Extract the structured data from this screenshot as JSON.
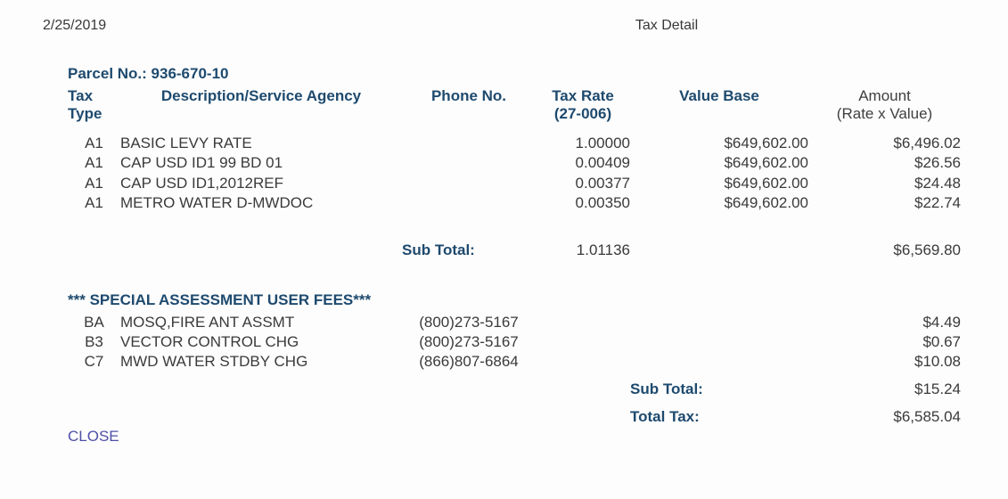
{
  "page": {
    "date": "2/25/2019",
    "title": "Tax Detail",
    "parcel": "Parcel No.: 936-670-10",
    "close_label": "CLOSE"
  },
  "colors": {
    "header_blue": "#1e4a6e",
    "body_text": "#3a3a3a",
    "close_link": "#4f4fa8",
    "background": "#ffffff"
  },
  "table": {
    "headers": {
      "tax_type_line1": "Tax",
      "tax_type_line2": "Type",
      "description": "Description/Service Agency",
      "phone": "Phone No.",
      "tax_rate_line1": "Tax Rate",
      "tax_rate_line2": "(27-006)",
      "value_base": "Value Base",
      "amount_line1": "Amount",
      "amount_line2": "(Rate x Value)"
    },
    "rows": [
      {
        "type": "A1",
        "description": "BASIC LEVY RATE",
        "phone": "",
        "rate": "1.00000",
        "value_base": "$649,602.00",
        "amount": "$6,496.02"
      },
      {
        "type": "A1",
        "description": "CAP USD ID1 99 BD 01",
        "phone": "",
        "rate": "0.00409",
        "value_base": "$649,602.00",
        "amount": "$26.56"
      },
      {
        "type": "A1",
        "description": "CAP USD ID1,2012REF",
        "phone": "",
        "rate": "0.00377",
        "value_base": "$649,602.00",
        "amount": "$24.48"
      },
      {
        "type": "A1",
        "description": "METRO WATER D-MWDOC",
        "phone": "",
        "rate": "0.00350",
        "value_base": "$649,602.00",
        "amount": "$22.74"
      }
    ],
    "subtotal_taxes": {
      "label": "Sub Total:",
      "rate": "1.01136",
      "amount": "$6,569.80"
    },
    "special_section": {
      "heading": "*** SPECIAL ASSESSMENT USER FEES***",
      "rows": [
        {
          "type": "BA",
          "description": "MOSQ,FIRE ANT ASSMT",
          "phone": "(800)273-5167",
          "amount": "$4.49"
        },
        {
          "type": "B3",
          "description": "VECTOR CONTROL CHG",
          "phone": "(800)273-5167",
          "amount": "$0.67"
        },
        {
          "type": "C7",
          "description": "MWD WATER STDBY CHG",
          "phone": "(866)807-6864",
          "amount": "$10.08"
        }
      ],
      "subtotal": {
        "label": "Sub Total:",
        "amount": "$15.24"
      },
      "total": {
        "label": "Total Tax:",
        "amount": "$6,585.04"
      }
    }
  }
}
